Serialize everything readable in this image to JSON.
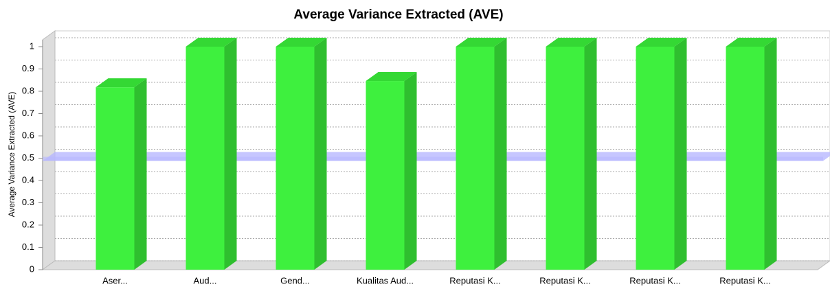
{
  "chart_data": {
    "type": "bar3d",
    "title": "Average Variance Extracted (AVE)",
    "y_label": "Average Variance Extracted (AVE)",
    "categories": [
      "Aser...",
      "Aud...",
      "Gend...",
      "Kualitas Aud...",
      "Reputasi K...",
      "Reputasi K...",
      "Reputasi K...",
      "Reputasi K..."
    ],
    "values": [
      0.818,
      1.0,
      1.0,
      0.846,
      1.0,
      1.0,
      1.0,
      1.0
    ],
    "color": "#3ef03e",
    "threshold": 0.5,
    "threshold_color": "#b8b8ff",
    "ylim": [
      0,
      1
    ],
    "yticks": [
      0,
      0.1,
      0.2,
      0.3,
      0.4,
      0.5,
      0.6,
      0.7,
      0.8,
      0.9,
      1
    ],
    "grid": true
  }
}
